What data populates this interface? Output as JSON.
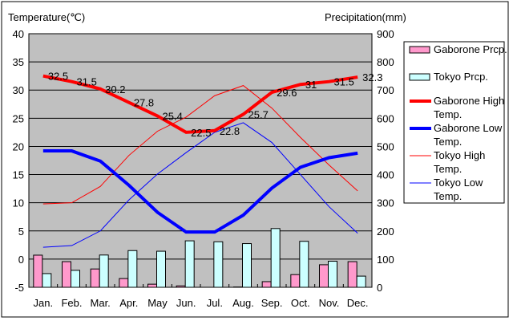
{
  "chart_data": {
    "type": "bar+line",
    "left_axis_title": "Temperature(℃)",
    "right_axis_title": "Precipitation(mm)",
    "left_ylim": [
      -5,
      40
    ],
    "left_ticks": [
      -5,
      0,
      5,
      10,
      15,
      20,
      25,
      30,
      35,
      40
    ],
    "right_ylim": [
      0,
      900
    ],
    "right_ticks": [
      0,
      100,
      200,
      300,
      400,
      500,
      600,
      700,
      800,
      900
    ],
    "grid": true,
    "legend_placement": "right",
    "categories": [
      "Jan.",
      "Feb.",
      "Mar.",
      "Apr.",
      "May",
      "Jun.",
      "Jul.",
      "Aug.",
      "Sep.",
      "Oct.",
      "Nov.",
      "Dec."
    ],
    "bar_series": [
      {
        "name": "Gaborone Prcp.",
        "color": "#ff99cc",
        "axis": "right",
        "values": [
          114,
          91,
          65,
          31,
          11,
          5,
          0,
          1,
          20,
          45,
          80,
          91
        ]
      },
      {
        "name": "Tokyo Prcp.",
        "color": "#ccffff",
        "axis": "right",
        "values": [
          48.6,
          60.2,
          114.5,
          130.3,
          128.0,
          164.9,
          161.5,
          155.1,
          208.5,
          163.1,
          92.5,
          39.6
        ]
      }
    ],
    "line_series": [
      {
        "name": "Gaborone High Temp.",
        "color": "#ff0000",
        "width": 4,
        "axis": "left",
        "labels": true,
        "values": [
          32.5,
          31.5,
          30.2,
          27.8,
          25.4,
          22.5,
          22.8,
          25.7,
          29.6,
          31,
          31.5,
          32.3
        ]
      },
      {
        "name": "Gaborone Low Temp.",
        "color": "#0000ff",
        "width": 4,
        "axis": "left",
        "labels": false,
        "values": [
          19.2,
          19.2,
          17.4,
          13.1,
          8.3,
          4.8,
          4.8,
          7.8,
          12.6,
          16.3,
          18.0,
          18.8
        ]
      },
      {
        "name": "Tokyo High Temp.",
        "color": "#ff0000",
        "width": 1,
        "axis": "left",
        "labels": false,
        "values": [
          9.8,
          10.0,
          12.9,
          18.4,
          22.7,
          25.2,
          29.0,
          30.8,
          26.8,
          21.6,
          16.7,
          12.1
        ]
      },
      {
        "name": "Tokyo Low Temp.",
        "color": "#0000ff",
        "width": 1,
        "axis": "left",
        "labels": false,
        "values": [
          2.1,
          2.4,
          5.0,
          10.5,
          15.1,
          18.9,
          22.5,
          24.2,
          20.7,
          15.0,
          9.3,
          4.6
        ]
      }
    ],
    "legend": [
      {
        "label": "Gaborone Prcp."
      },
      {
        "label": "Tokyo Prcp."
      },
      {
        "label_lines": [
          "Gaborone High",
          "Temp."
        ]
      },
      {
        "label_lines": [
          "Gaborone Low",
          "Temp."
        ]
      },
      {
        "label_lines": [
          "Tokyo High",
          "Temp."
        ]
      },
      {
        "label_lines": [
          "Tokyo Low",
          "Temp."
        ]
      }
    ]
  }
}
